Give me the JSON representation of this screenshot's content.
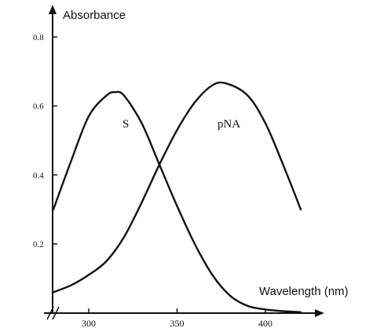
{
  "chart_data": {
    "type": "line",
    "title": "",
    "xlabel": "Wavelength (nm)",
    "ylabel": "Absorbance",
    "xlim": [
      270,
      425
    ],
    "ylim": [
      0,
      0.9
    ],
    "x_ticks": [
      300,
      350,
      400
    ],
    "y_ticks": [
      0.2,
      0.4,
      0.6,
      0.8
    ],
    "y_tick_labels": [
      "0.2",
      "0.4",
      "0.6",
      "0.8"
    ],
    "axis_break": true,
    "grid": false,
    "series": [
      {
        "name": "S",
        "x": [
          280,
          290,
          300,
          310,
          315,
          320,
          330,
          340,
          350,
          360,
          370,
          380,
          390,
          400,
          410,
          420
        ],
        "y": [
          0.3,
          0.44,
          0.57,
          0.63,
          0.64,
          0.63,
          0.55,
          0.43,
          0.31,
          0.2,
          0.11,
          0.05,
          0.02,
          0.01,
          0.005,
          0.002
        ]
      },
      {
        "name": "pNA",
        "x": [
          280,
          290,
          300,
          310,
          320,
          330,
          340,
          350,
          360,
          370,
          378,
          390,
          400,
          410,
          420
        ],
        "y": [
          0.06,
          0.08,
          0.11,
          0.15,
          0.22,
          0.32,
          0.43,
          0.53,
          0.61,
          0.66,
          0.665,
          0.63,
          0.55,
          0.43,
          0.3
        ]
      }
    ]
  }
}
